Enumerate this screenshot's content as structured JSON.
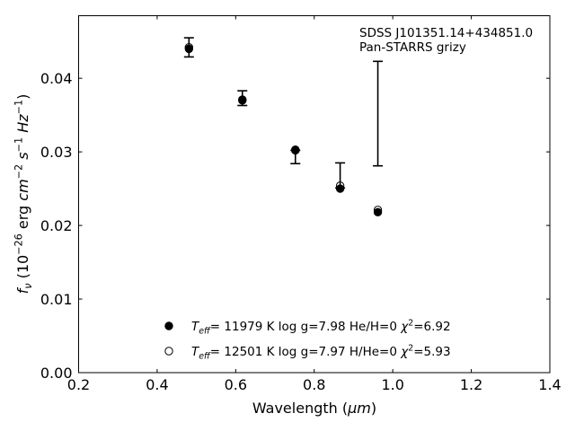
{
  "chart_data": {
    "type": "scatter",
    "title": "",
    "annotation": [
      "SDSS J101351.14+434851.0",
      "Pan-STARRS grizy"
    ],
    "xlabel_parts": [
      {
        "t": "Wavelength ("
      },
      {
        "t": "μm",
        "italic": true
      },
      {
        "t": ")"
      }
    ],
    "ylabel_parts": [
      {
        "t": "f",
        "italic": true
      },
      {
        "t": "ν",
        "italic": true,
        "shift": "sub"
      },
      {
        "t": " (10"
      },
      {
        "t": "−26",
        "shift": "super"
      },
      {
        "t": " erg "
      },
      {
        "t": "cm",
        "italic": true
      },
      {
        "t": "−2",
        "shift": "super"
      },
      {
        "t": " "
      },
      {
        "t": "s",
        "italic": true
      },
      {
        "t": "−1",
        "shift": "super"
      },
      {
        "t": " "
      },
      {
        "t": "Hz",
        "italic": true
      },
      {
        "t": "−1",
        "shift": "super"
      },
      {
        "t": ")"
      }
    ],
    "xlim": [
      0.2,
      1.4
    ],
    "ylim": [
      0.0,
      0.0485
    ],
    "xticks": [
      0.2,
      0.4,
      0.6,
      0.8,
      1.0,
      1.2,
      1.4
    ],
    "xtick_labels": [
      "0.2",
      "0.4",
      "0.6",
      "0.8",
      "1.0",
      "1.2",
      "1.4"
    ],
    "yticks": [
      0.0,
      0.01,
      0.02,
      0.03,
      0.04
    ],
    "ytick_labels": [
      "0.00",
      "0.01",
      "0.02",
      "0.03",
      "0.04"
    ],
    "grid": false,
    "legend_position": "lower-center",
    "observed": {
      "x": [
        0.481,
        0.617,
        0.752,
        0.866,
        0.962
      ],
      "y": [
        0.0442,
        0.0373,
        0.0302,
        0.0254,
        0.0352
      ],
      "yerr_low": [
        0.0013,
        0.001,
        0.0018,
        0.0003,
        0.0071
      ],
      "yerr_high": [
        0.0013,
        0.001,
        0.0,
        0.0031,
        0.0071
      ]
    },
    "series": [
      {
        "legend_parts": [
          {
            "t": "T",
            "italic": true
          },
          {
            "t": "eff",
            "italic": true,
            "shift": "sub"
          },
          {
            "t": "= 11979 K  log g=7.98  He/H=0  "
          },
          {
            "t": "χ",
            "italic": true
          },
          {
            "t": "2",
            "shift": "super"
          },
          {
            "t": "=6.92"
          }
        ],
        "marker": "filled",
        "x": [
          0.481,
          0.617,
          0.752,
          0.866,
          0.962
        ],
        "y": [
          0.044,
          0.0371,
          0.0302,
          0.025,
          0.0218
        ]
      },
      {
        "legend_parts": [
          {
            "t": "T",
            "italic": true
          },
          {
            "t": "eff",
            "italic": true,
            "shift": "sub"
          },
          {
            "t": "= 12501 K  log g=7.97  H/He=0  "
          },
          {
            "t": "χ",
            "italic": true
          },
          {
            "t": "2",
            "shift": "super"
          },
          {
            "t": "=5.93"
          }
        ],
        "marker": "open",
        "x": [
          0.481,
          0.617,
          0.752,
          0.866,
          0.962
        ],
        "y": [
          0.0442,
          0.037,
          0.0303,
          0.0254,
          0.0221
        ]
      }
    ]
  }
}
